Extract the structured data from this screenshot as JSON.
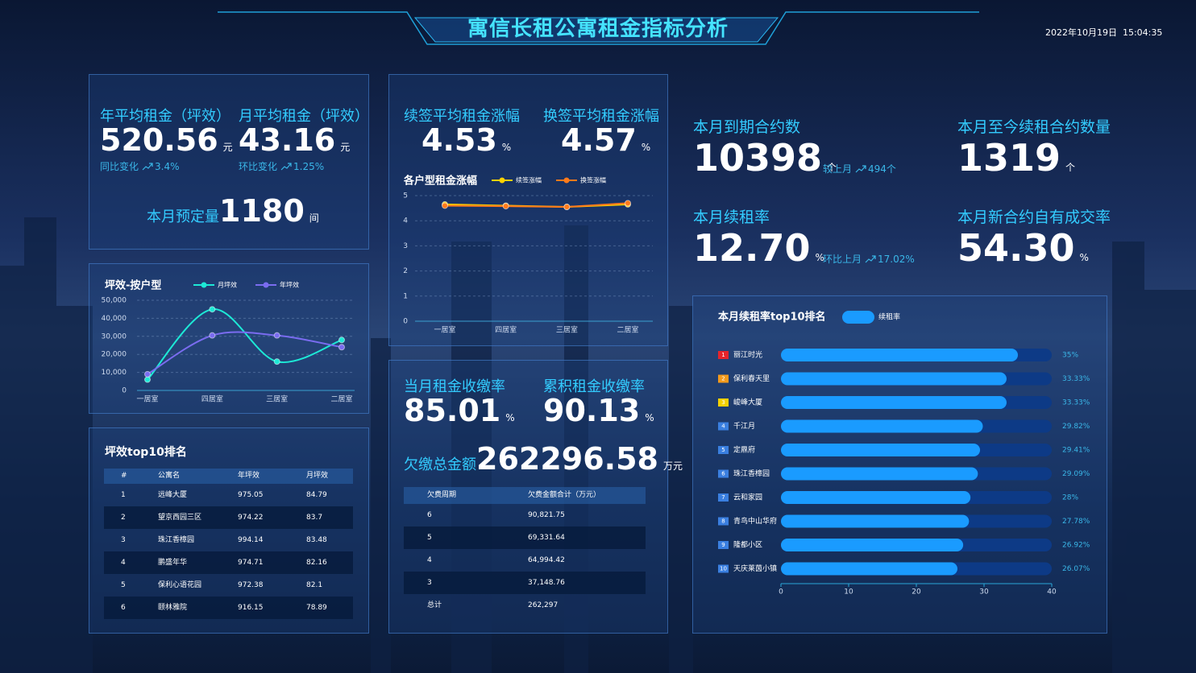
{
  "header": {
    "title": "寓信长租公寓租金指标分析",
    "datetime": "2022年10月19日  15:04:35"
  },
  "rent_summary": {
    "annual": {
      "label": "年平均租金（坪效）",
      "value": "520.56",
      "unit": "元",
      "change_label": "同比变化",
      "change": "3.4%"
    },
    "monthly": {
      "label": "月平均租金（坪效）",
      "value": "43.16",
      "unit": "元",
      "change_label": "环比变化",
      "change": "1.25%"
    },
    "booking": {
      "label": "本月预定量",
      "value": "1180",
      "unit": "间"
    }
  },
  "increase_summary": {
    "renewal": {
      "label": "续签平均租金涨幅",
      "value": "4.53",
      "unit": "%"
    },
    "switch": {
      "label": "换签平均租金涨幅",
      "value": "4.57",
      "unit": "%"
    }
  },
  "collection": {
    "monthly": {
      "label": "当月租金收缴率",
      "value": "85.01",
      "unit": "%"
    },
    "cumulative": {
      "label": "累积租金收缴率",
      "value": "90.13",
      "unit": "%"
    },
    "arrears": {
      "label": "欠缴总金额",
      "value": "262296.58",
      "unit": "万元"
    },
    "table": {
      "header": [
        "欠费周期",
        "欠费金额合计（万元）"
      ],
      "rows": [
        [
          "6",
          "90,821.75"
        ],
        [
          "5",
          "69,331.64"
        ],
        [
          "4",
          "64,994.42"
        ],
        [
          "3",
          "37,148.76"
        ],
        [
          "总计",
          "262,297"
        ]
      ]
    }
  },
  "contracts": {
    "expiring": {
      "label": "本月到期合约数",
      "value": "10398",
      "unit": "个",
      "change_label": "较上月",
      "change": "494个"
    },
    "renewed": {
      "label": "本月至今续租合约数量",
      "value": "1319",
      "unit": "个"
    },
    "renewal_rate": {
      "label": "本月续租率",
      "value": "12.70",
      "unit": "%",
      "change_label": "环比上月",
      "change": "17.02%"
    },
    "own_rate": {
      "label": "本月新合约自有成交率",
      "value": "54.30",
      "unit": "%"
    }
  },
  "efficiency_table": {
    "title": "坪效top10排名",
    "header": [
      "#",
      "公寓名",
      "年坪效",
      "月坪效"
    ],
    "rows": [
      [
        "1",
        "远峰大厦",
        "975.05",
        "84.79"
      ],
      [
        "2",
        "望京西园三区",
        "974.22",
        "83.7"
      ],
      [
        "3",
        "珠江香樟园",
        "994.14",
        "83.48"
      ],
      [
        "4",
        "鹏盛年华",
        "974.71",
        "82.16"
      ],
      [
        "5",
        "保利心语花园",
        "972.38",
        "82.1"
      ],
      [
        "6",
        "颐林雅院",
        "916.15",
        "78.89"
      ]
    ]
  },
  "chart_data": [
    {
      "type": "line",
      "title": "各户型租金涨幅",
      "categories": [
        "一居室",
        "四居室",
        "三居室",
        "二居室"
      ],
      "series": [
        {
          "name": "续签涨幅",
          "color": "#ffd200",
          "values": [
            4.65,
            4.6,
            4.55,
            4.65
          ]
        },
        {
          "name": "换签涨幅",
          "color": "#ff7a1a",
          "values": [
            4.6,
            4.58,
            4.55,
            4.7
          ]
        }
      ],
      "ylim": [
        0,
        5
      ],
      "yticks": [
        0,
        1,
        2,
        3,
        4,
        5
      ],
      "grid": true
    },
    {
      "type": "line",
      "title": "坪效-按户型",
      "categories": [
        "一居室",
        "四居室",
        "三居室",
        "二居室"
      ],
      "smooth": true,
      "series": [
        {
          "name": "月坪效",
          "color": "#1de9d6",
          "values": [
            6000,
            45000,
            16000,
            28000
          ]
        },
        {
          "name": "年坪效",
          "color": "#7a6cf0",
          "values": [
            9000,
            30500,
            30500,
            24000
          ]
        }
      ],
      "ylim": [
        0,
        50000
      ],
      "yticks": [
        0,
        {
          "value": 10000,
          "label": "10,000"
        },
        {
          "value": 20000,
          "label": "20,000"
        },
        {
          "value": 30000,
          "label": "30,000"
        },
        {
          "value": 40000,
          "label": "40,000"
        },
        {
          "value": 50000,
          "label": "50,000"
        }
      ],
      "grid": true
    },
    {
      "type": "bar",
      "orientation": "horizontal",
      "title": "本月续租率top10排名",
      "ranks": [
        "1",
        "2",
        "3",
        "4",
        "5",
        "6",
        "7",
        "8",
        "9",
        "10"
      ],
      "categories": [
        "丽江时光",
        "保利春天里",
        "峻峰大厦",
        "千江月",
        "定鼎府",
        "珠江香樟园",
        "云和家园",
        "青鸟中山华府",
        "隆都小区",
        "天庆莱茵小镇"
      ],
      "series": [
        {
          "name": "续租率",
          "color": "#1a9bff",
          "values": [
            35,
            33.33,
            33.33,
            29.82,
            29.41,
            29.09,
            28,
            27.78,
            26.92,
            26.07
          ],
          "value_labels": [
            "35%",
            "33.33%",
            "33.33%",
            "29.82%",
            "29.41%",
            "29.09%",
            "28%",
            "27.78%",
            "26.92%",
            "26.07%"
          ]
        }
      ],
      "xlim": [
        0,
        40
      ],
      "xticks": [
        0,
        10,
        20,
        30,
        40
      ]
    }
  ]
}
